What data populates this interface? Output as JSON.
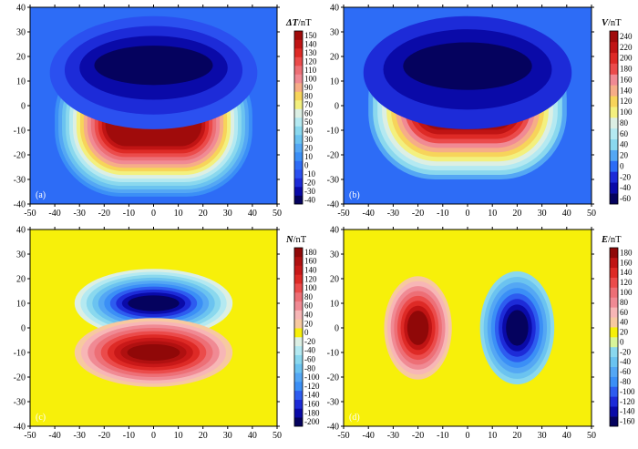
{
  "chart_data": [
    {
      "panel": "(a)",
      "type": "heatmap",
      "colorbar_title_var": "ΔT",
      "colorbar_title_unit": "/nT",
      "colorbar_levels": [
        -40,
        -30,
        -20,
        -10,
        0,
        10,
        20,
        30,
        40,
        50,
        60,
        70,
        80,
        90,
        100,
        110,
        120,
        130,
        140,
        150
      ],
      "colorbar_colors": [
        "#05025e",
        "#0a0aa8",
        "#1d2bd8",
        "#2b50f0",
        "#2d6cf6",
        "#3b8ff6",
        "#54a7f4",
        "#6bc3f0",
        "#8ad8ee",
        "#b4e9f1",
        "#dcefe4",
        "#f3f07e",
        "#f7d45a",
        "#f6ad88",
        "#f08a94",
        "#ed6f76",
        "#eb4b4b",
        "#de2a26",
        "#c01414",
        "#a00b0b"
      ],
      "background": "#2d6cf6",
      "xlim": [
        -50,
        50
      ],
      "ylim": [
        -40,
        40
      ],
      "xticks": [
        -50,
        -40,
        -30,
        -20,
        -10,
        0,
        10,
        20,
        30,
        40,
        50
      ],
      "yticks": [
        -40,
        -30,
        -20,
        -10,
        0,
        10,
        20,
        30,
        40
      ],
      "features": [
        {
          "cx": 0,
          "cy": -7,
          "peak": 150,
          "shape": "rect"
        },
        {
          "cx": 0,
          "cy": 18,
          "min": -40,
          "shape": "arc"
        }
      ]
    },
    {
      "panel": "(b)",
      "type": "heatmap",
      "colorbar_title_var": "V",
      "colorbar_title_unit": "/nT",
      "colorbar_levels": [
        -60,
        -40,
        -20,
        0,
        20,
        40,
        60,
        80,
        100,
        120,
        140,
        160,
        180,
        200,
        220,
        240
      ],
      "colorbar_colors": [
        "#05025e",
        "#0a0aa8",
        "#1d2bd8",
        "#2d6cf6",
        "#54a7f4",
        "#8ad8ee",
        "#b4e9f1",
        "#dcefe4",
        "#f3f07e",
        "#f7d45a",
        "#f6ad88",
        "#f08a94",
        "#eb4b4b",
        "#de2a26",
        "#c01414",
        "#a00b0b"
      ],
      "background": "#2d6cf6",
      "xlim": [
        -50,
        50
      ],
      "ylim": [
        -40,
        40
      ],
      "xticks": [
        -50,
        -40,
        -30,
        -20,
        -10,
        0,
        10,
        20,
        30,
        40,
        50
      ],
      "yticks": [
        -40,
        -30,
        -20,
        -10,
        0,
        10,
        20,
        30,
        40
      ],
      "features": [
        {
          "cx": 0,
          "cy": 0,
          "peak": 240,
          "shape": "rect"
        },
        {
          "cx": 0,
          "cy": 18,
          "min": -60,
          "shape": "arc"
        }
      ]
    },
    {
      "panel": "(c)",
      "type": "heatmap",
      "colorbar_title_var": "N",
      "colorbar_title_unit": "/nT",
      "colorbar_levels": [
        -200,
        -180,
        -160,
        -140,
        -120,
        -100,
        -80,
        -60,
        -40,
        -20,
        0,
        20,
        40,
        60,
        80,
        100,
        120,
        140,
        160,
        180
      ],
      "colorbar_colors": [
        "#05025e",
        "#0a0aa8",
        "#1d2bd8",
        "#2d5cf0",
        "#3b8ff6",
        "#54a7f4",
        "#6bc3f0",
        "#8ad8ee",
        "#b4e9f1",
        "#dcefe4",
        "#f7f00a",
        "#f7c9a0",
        "#f7b6b6",
        "#f08a94",
        "#ed6f76",
        "#eb4b4b",
        "#de2a26",
        "#c81818",
        "#b01010",
        "#900808"
      ],
      "background": "#f7f00a",
      "xlim": [
        -50,
        50
      ],
      "ylim": [
        -40,
        40
      ],
      "xticks": [
        -50,
        -40,
        -30,
        -20,
        -10,
        0,
        10,
        20,
        30,
        40,
        50
      ],
      "yticks": [
        -40,
        -30,
        -20,
        -10,
        0,
        10,
        20,
        30,
        40
      ],
      "features": [
        {
          "cx": 0,
          "cy": 10,
          "min": -200,
          "shape": "ellipse"
        },
        {
          "cx": 0,
          "cy": -10,
          "peak": 180,
          "shape": "ellipse"
        }
      ]
    },
    {
      "panel": "(d)",
      "type": "heatmap",
      "colorbar_title_var": "E",
      "colorbar_title_unit": "/nT",
      "colorbar_levels": [
        -160,
        -140,
        -120,
        -100,
        -80,
        -60,
        -40,
        -20,
        0,
        20,
        40,
        60,
        80,
        100,
        120,
        140,
        160,
        180
      ],
      "colorbar_colors": [
        "#05025e",
        "#0a0aa8",
        "#1d2bd8",
        "#2d5cf0",
        "#3b8ff6",
        "#54a7f4",
        "#6bc3f0",
        "#8ad8ee",
        "#d8f59a",
        "#f7f00a",
        "#f7c9a0",
        "#f7b6b6",
        "#f08a94",
        "#ed6f76",
        "#eb4b4b",
        "#de2a26",
        "#c01414",
        "#900808"
      ],
      "background": "#f7f00a",
      "xlim": [
        -50,
        50
      ],
      "ylim": [
        -40,
        40
      ],
      "xticks": [
        -50,
        -40,
        -30,
        -20,
        -10,
        0,
        10,
        20,
        30,
        40,
        50
      ],
      "yticks": [
        -40,
        -30,
        -20,
        -10,
        0,
        10,
        20,
        30,
        40
      ],
      "features": [
        {
          "cx": -20,
          "cy": 0,
          "peak": 180,
          "shape": "ellipse"
        },
        {
          "cx": 20,
          "cy": 0,
          "min": -160,
          "shape": "ellipse"
        }
      ]
    }
  ]
}
